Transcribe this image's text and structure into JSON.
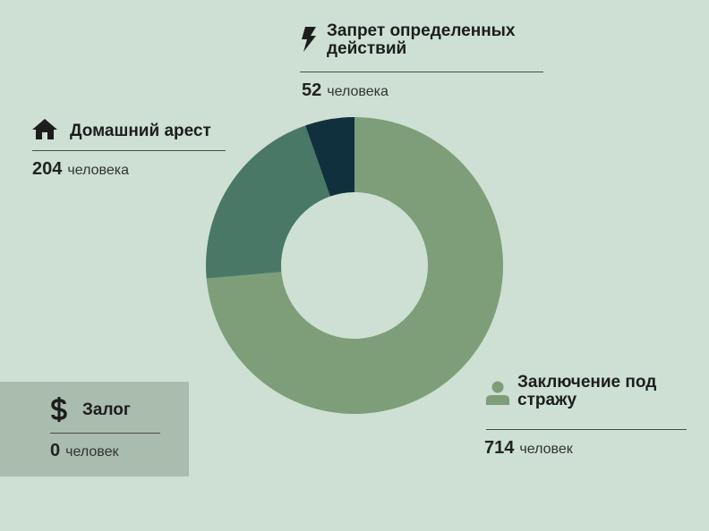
{
  "chart_data": {
    "type": "pie",
    "categories": [
      "Заключение под стражу",
      "Домашний арест",
      "Запрет определенных действий",
      "Залог"
    ],
    "values": [
      714,
      204,
      52,
      0
    ],
    "units": [
      "человек",
      "человека",
      "человека",
      "человек"
    ],
    "colors": [
      "#7d9e78",
      "#4a7866",
      "#11303d",
      "#a9bcae"
    ]
  }
}
